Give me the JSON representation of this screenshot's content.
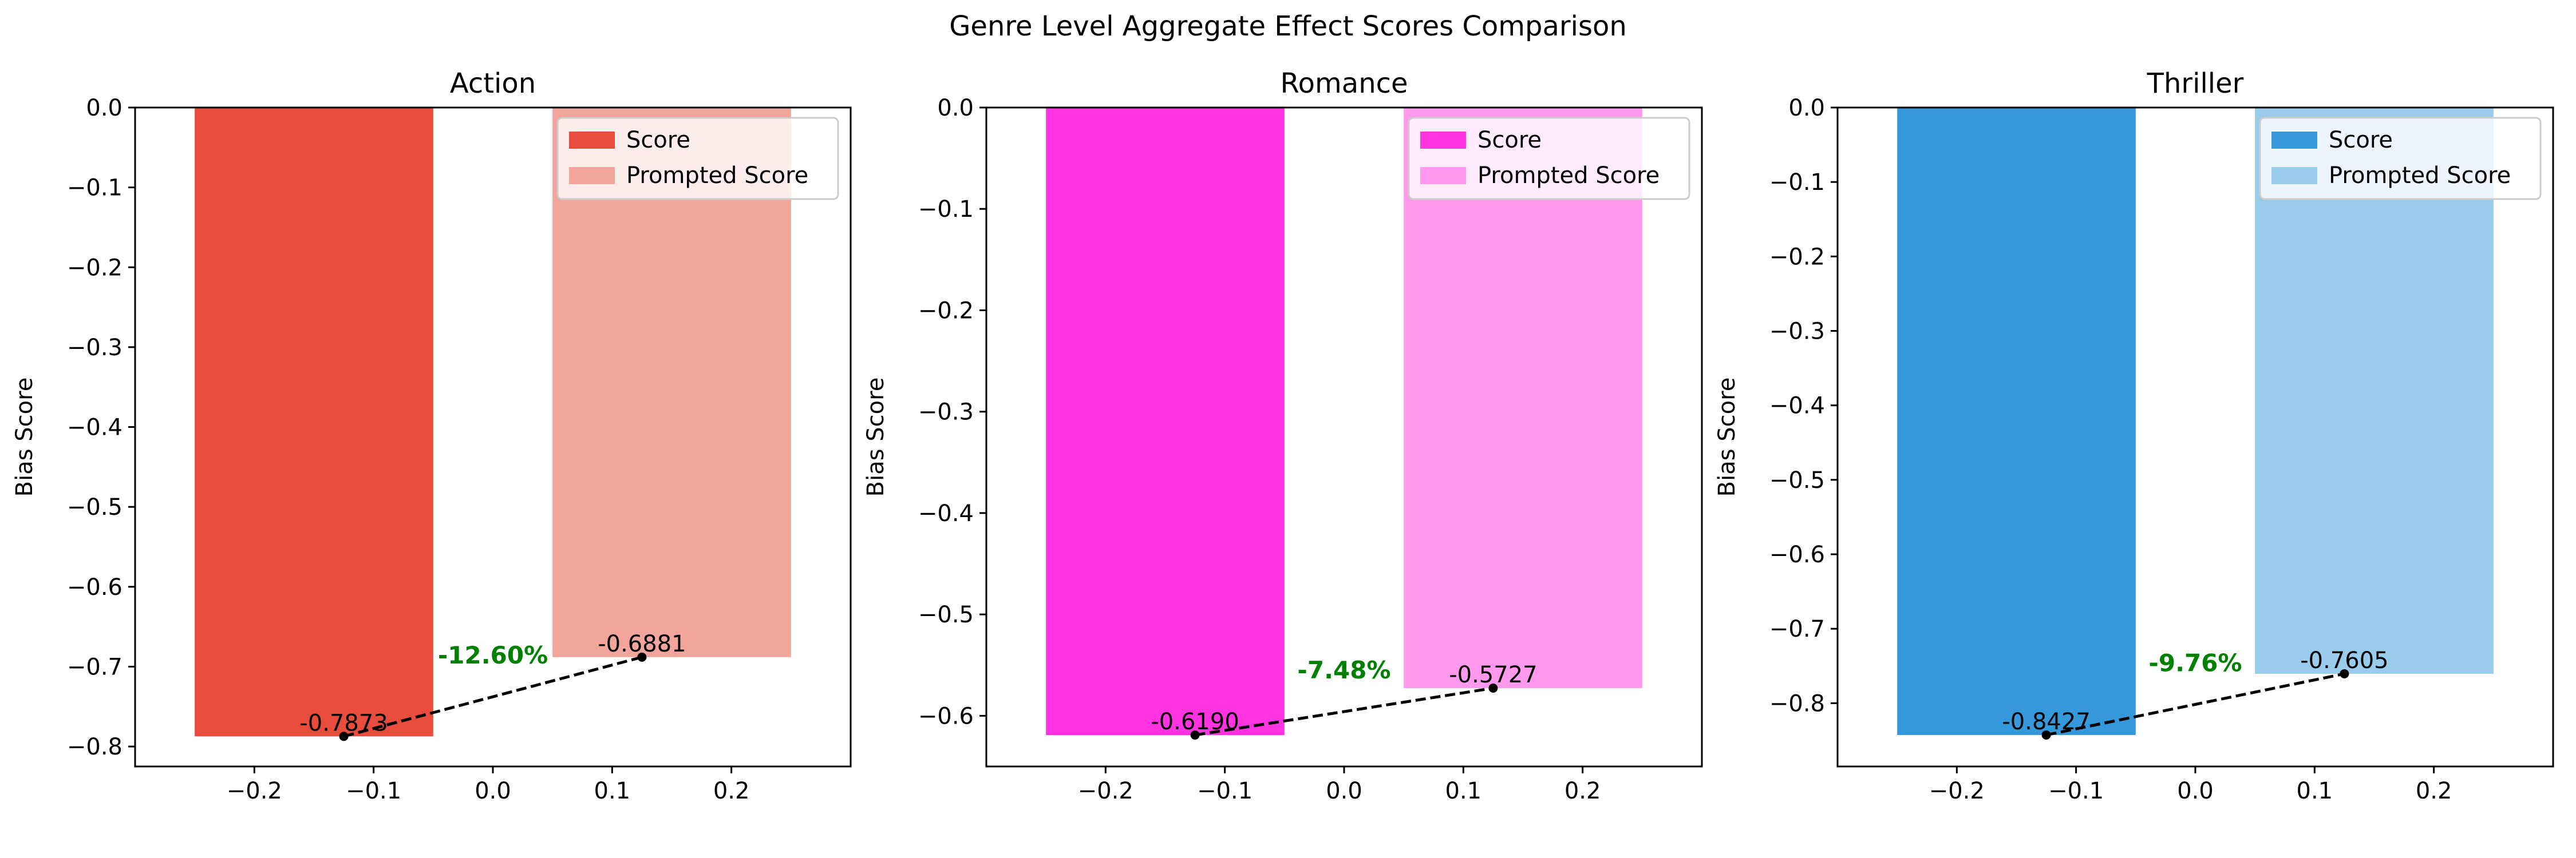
{
  "title": "Genre Level Aggregate Effect Scores Comparison",
  "chart_data": [
    {
      "type": "bar",
      "title": "Action",
      "ylabel": "Bias Score",
      "xlabel": "",
      "xlim": [
        -0.3,
        0.3
      ],
      "ylim": [
        -0.825,
        0.0
      ],
      "xticks": [
        "−0.2",
        "−0.1",
        "0.0",
        "0.1",
        "0.2"
      ],
      "yticks": [
        "0.0",
        "−0.1",
        "−0.2",
        "−0.3",
        "−0.4",
        "−0.5",
        "−0.6",
        "−0.7",
        "−0.8"
      ],
      "series": [
        {
          "name": "Score",
          "x": -0.15,
          "value": -0.7873,
          "label": "-0.7873",
          "color": "#e74c3c"
        },
        {
          "name": "Prompted Score",
          "x": 0.15,
          "value": -0.6881,
          "label": "-0.6881",
          "color": "#f1a59d"
        }
      ],
      "connector": {
        "x": [
          -0.125,
          0.125
        ],
        "y": [
          -0.7873,
          -0.6881
        ]
      },
      "change_label": "-12.60%",
      "change_color": "#008000",
      "legend": "upper right"
    },
    {
      "type": "bar",
      "title": "Romance",
      "ylabel": "Bias Score",
      "xlabel": "",
      "xlim": [
        -0.3,
        0.3
      ],
      "ylim": [
        -0.65,
        0.0
      ],
      "xticks": [
        "−0.2",
        "−0.1",
        "0.0",
        "0.1",
        "0.2"
      ],
      "yticks": [
        "0.0",
        "−0.1",
        "−0.2",
        "−0.3",
        "−0.4",
        "−0.5",
        "−0.6"
      ],
      "series": [
        {
          "name": "Score",
          "x": -0.15,
          "value": -0.619,
          "label": "-0.6190",
          "color": "#ff33e0"
        },
        {
          "name": "Prompted Score",
          "x": 0.15,
          "value": -0.5727,
          "label": "-0.5727",
          "color": "#ff99ee"
        }
      ],
      "connector": {
        "x": [
          -0.125,
          0.125
        ],
        "y": [
          -0.619,
          -0.5727
        ]
      },
      "change_label": "-7.48%",
      "change_color": "#008000",
      "legend": "upper right"
    },
    {
      "type": "bar",
      "title": "Thriller",
      "ylabel": "Bias Score",
      "xlabel": "",
      "xlim": [
        -0.3,
        0.3
      ],
      "ylim": [
        -0.885,
        0.0
      ],
      "xticks": [
        "−0.2",
        "−0.1",
        "0.0",
        "0.1",
        "0.2"
      ],
      "yticks": [
        "0.0",
        "−0.1",
        "−0.2",
        "−0.3",
        "−0.4",
        "−0.5",
        "−0.6",
        "−0.7",
        "−0.8"
      ],
      "series": [
        {
          "name": "Score",
          "x": -0.15,
          "value": -0.8427,
          "label": "-0.8427",
          "color": "#3498db"
        },
        {
          "name": "Prompted Score",
          "x": 0.15,
          "value": -0.7605,
          "label": "-0.7605",
          "color": "#99cbeb"
        }
      ],
      "connector": {
        "x": [
          -0.125,
          0.125
        ],
        "y": [
          -0.8427,
          -0.7605
        ]
      },
      "change_label": "-9.76%",
      "change_color": "#008000",
      "legend": "upper right"
    }
  ]
}
